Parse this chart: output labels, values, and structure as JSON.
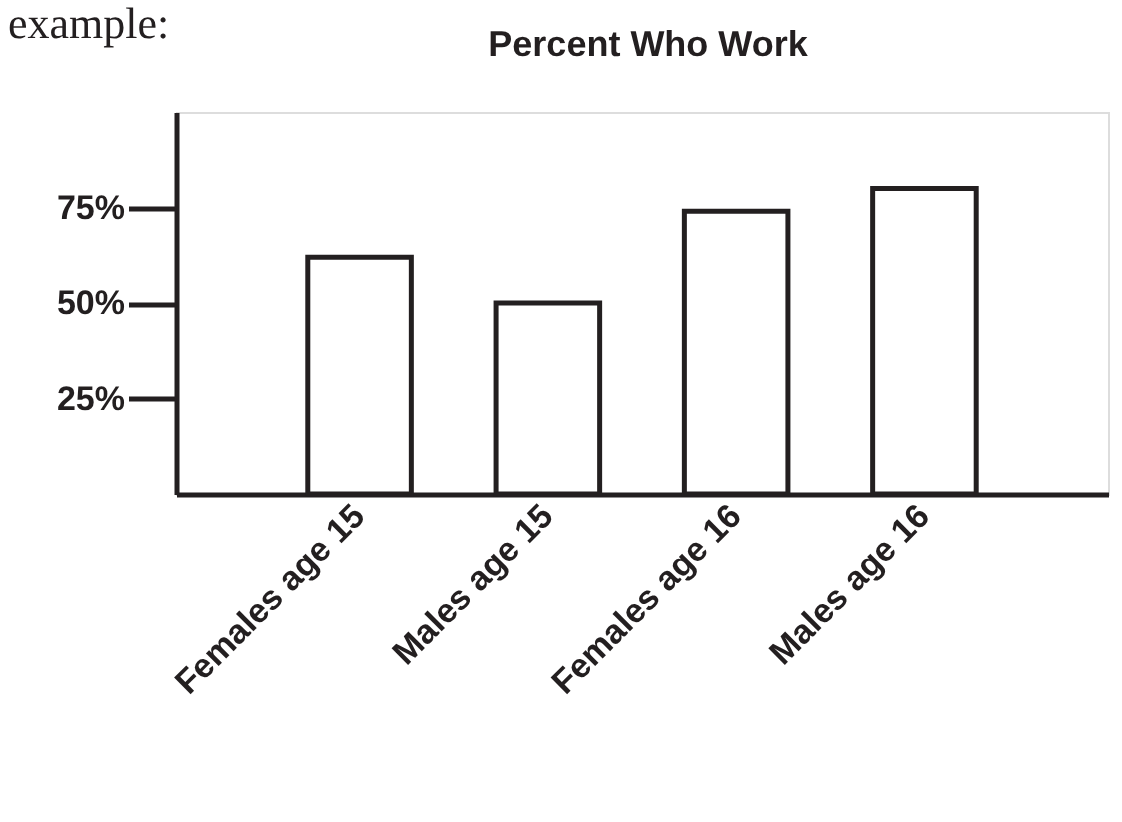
{
  "chart_data": {
    "type": "bar",
    "title": "Percent Who Work",
    "annotations": [
      "example:"
    ],
    "categories": [
      "Females age 15",
      "Males age 15",
      "Females age 16",
      "Males age 16"
    ],
    "values": [
      62,
      50,
      74,
      80
    ],
    "color": "#ffffff",
    "ylim": [
      0,
      100
    ],
    "yticks": [
      {
        "value": 25,
        "label": "25%"
      },
      {
        "value": 50,
        "label": "50%"
      },
      {
        "value": 75,
        "label": "75%"
      }
    ],
    "grid": false
  }
}
